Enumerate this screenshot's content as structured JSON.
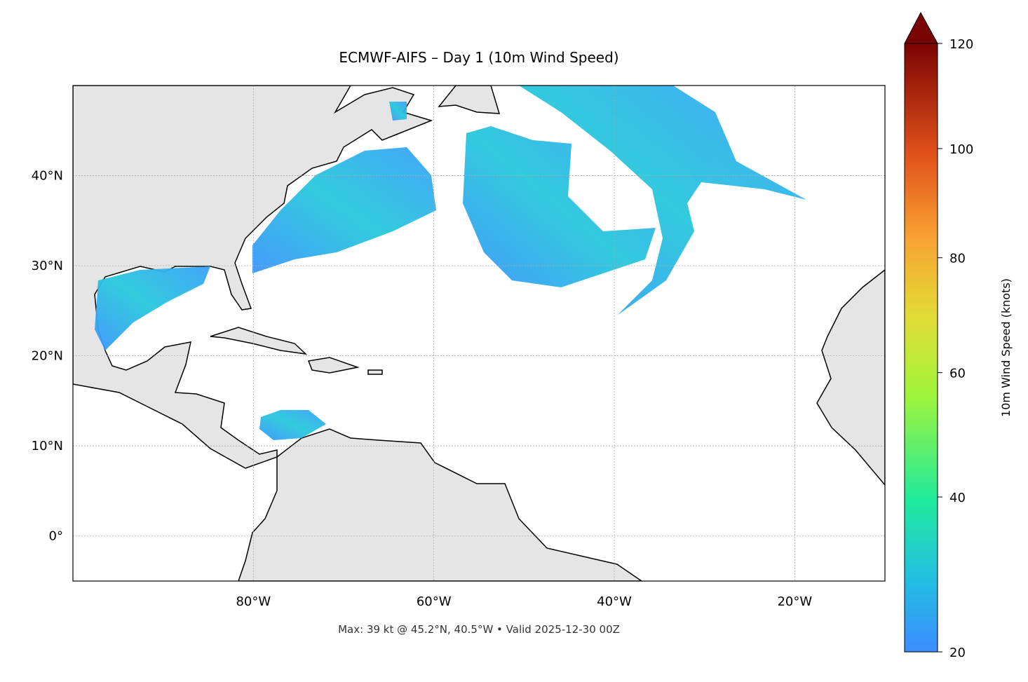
{
  "map": {
    "title": "ECMWF-AIFS – Day 1 (10m Wind Speed)",
    "footnote": "Max: 39 kt @ 45.2°N, 40.5°W • Valid 2025-12-30 00Z",
    "xlim": [
      -100,
      -10
    ],
    "ylim": [
      -5,
      50
    ],
    "xticks": [
      {
        "value": -80,
        "label": "80°W"
      },
      {
        "value": -60,
        "label": "60°W"
      },
      {
        "value": -40,
        "label": "40°W"
      },
      {
        "value": -20,
        "label": "20°W"
      }
    ],
    "yticks": [
      {
        "value": 0,
        "label": "0°"
      },
      {
        "value": 10,
        "label": "10°N"
      },
      {
        "value": 20,
        "label": "20°N"
      },
      {
        "value": 30,
        "label": "30°N"
      },
      {
        "value": 40,
        "label": "40°N"
      }
    ],
    "grid": true,
    "colorbar": {
      "label": "10m Wind Speed (knots)",
      "lim": [
        20,
        120
      ],
      "ticks": [
        20,
        40,
        60,
        80,
        100,
        120
      ],
      "norm": {
        "type": "power",
        "gamma": 0.85
      }
    }
  }
}
